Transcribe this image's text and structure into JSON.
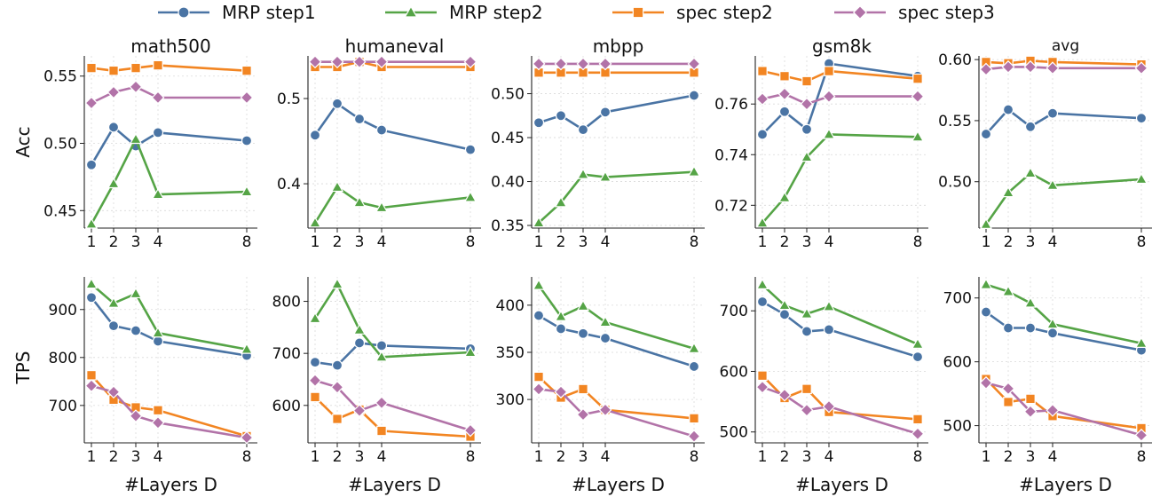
{
  "legend": [
    {
      "name": "MRP step1",
      "color": "#4a74a4",
      "marker": "circle"
    },
    {
      "name": "MRP step2",
      "color": "#55a446",
      "marker": "triangle"
    },
    {
      "name": "spec step2",
      "color": "#f28522",
      "marker": "square"
    },
    {
      "name": "spec step3",
      "color": "#b273a8",
      "marker": "diamond"
    }
  ],
  "row_labels": [
    "Acc",
    "TPS"
  ],
  "xlabel": "#Layers D",
  "chart_data": [
    {
      "type": "line",
      "title": "math500",
      "row": 0,
      "ylabel": "Acc",
      "xlabel": "",
      "x": [
        1,
        2,
        3,
        4,
        8
      ],
      "ylim": [
        0.437,
        0.565
      ],
      "yticks": [
        0.45,
        0.5,
        0.55
      ],
      "yticklabels": [
        "0.45",
        "0.50",
        "0.55"
      ],
      "series": [
        {
          "name": "MRP step1",
          "values": [
            0.484,
            0.512,
            0.498,
            0.508,
            0.502
          ]
        },
        {
          "name": "MRP step2",
          "values": [
            0.44,
            0.47,
            0.503,
            0.462,
            0.464
          ]
        },
        {
          "name": "spec step2",
          "values": [
            0.556,
            0.554,
            0.556,
            0.558,
            0.554
          ]
        },
        {
          "name": "spec step3",
          "values": [
            0.53,
            0.538,
            0.542,
            0.534,
            0.534
          ]
        }
      ]
    },
    {
      "type": "line",
      "title": "humaneval",
      "row": 0,
      "ylabel": "",
      "xlabel": "",
      "x": [
        1,
        2,
        3,
        4,
        8
      ],
      "ylim": [
        0.348,
        0.55
      ],
      "yticks": [
        0.4,
        0.5
      ],
      "yticklabels": [
        "0.4",
        "0.5"
      ],
      "series": [
        {
          "name": "MRP step1",
          "values": [
            0.457,
            0.494,
            0.476,
            0.463,
            0.44
          ]
        },
        {
          "name": "MRP step2",
          "values": [
            0.354,
            0.396,
            0.378,
            0.372,
            0.384
          ]
        },
        {
          "name": "spec step2",
          "values": [
            0.537,
            0.537,
            0.543,
            0.537,
            0.537
          ]
        },
        {
          "name": "spec step3",
          "values": [
            0.543,
            0.543,
            0.543,
            0.543,
            0.543
          ]
        }
      ]
    },
    {
      "type": "line",
      "title": "mbpp",
      "row": 0,
      "ylabel": "",
      "xlabel": "",
      "x": [
        1,
        2,
        3,
        4,
        8
      ],
      "ylim": [
        0.347,
        0.543
      ],
      "yticks": [
        0.35,
        0.4,
        0.45,
        0.5
      ],
      "yticklabels": [
        "0.35",
        "0.40",
        "0.45",
        "0.50"
      ],
      "series": [
        {
          "name": "MRP step1",
          "values": [
            0.467,
            0.475,
            0.459,
            0.479,
            0.498
          ]
        },
        {
          "name": "MRP step2",
          "values": [
            0.353,
            0.376,
            0.408,
            0.405,
            0.411
          ]
        },
        {
          "name": "spec step2",
          "values": [
            0.524,
            0.524,
            0.524,
            0.524,
            0.524
          ]
        },
        {
          "name": "spec step3",
          "values": [
            0.534,
            0.534,
            0.534,
            0.534,
            0.534
          ]
        }
      ]
    },
    {
      "type": "line",
      "title": "gsm8k",
      "row": 0,
      "ylabel": "",
      "xlabel": "",
      "x": [
        1,
        2,
        3,
        4,
        8
      ],
      "ylim": [
        0.711,
        0.779
      ],
      "yticks": [
        0.72,
        0.74,
        0.76
      ],
      "yticklabels": [
        "0.72",
        "0.74",
        "0.76"
      ],
      "series": [
        {
          "name": "MRP step1",
          "values": [
            0.748,
            0.757,
            0.75,
            0.776,
            0.771
          ]
        },
        {
          "name": "MRP step2",
          "values": [
            0.713,
            0.723,
            0.739,
            0.748,
            0.747
          ]
        },
        {
          "name": "spec step2",
          "values": [
            0.773,
            0.771,
            0.769,
            0.773,
            0.77
          ]
        },
        {
          "name": "spec step3",
          "values": [
            0.762,
            0.764,
            0.76,
            0.763,
            0.763
          ]
        }
      ]
    },
    {
      "type": "line",
      "title": "avg",
      "row": 0,
      "ylabel": "",
      "xlabel": "",
      "x": [
        1,
        2,
        3,
        4,
        8
      ],
      "ylim": [
        0.462,
        0.603
      ],
      "yticks": [
        0.5,
        0.55,
        0.6
      ],
      "yticklabels": [
        "0.50",
        "0.55",
        "0.60"
      ],
      "series": [
        {
          "name": "MRP step1",
          "values": [
            0.539,
            0.559,
            0.545,
            0.556,
            0.552
          ]
        },
        {
          "name": "MRP step2",
          "values": [
            0.465,
            0.491,
            0.507,
            0.497,
            0.502
          ]
        },
        {
          "name": "spec step2",
          "values": [
            0.598,
            0.597,
            0.599,
            0.598,
            0.596
          ]
        },
        {
          "name": "spec step3",
          "values": [
            0.592,
            0.594,
            0.594,
            0.593,
            0.593
          ]
        }
      ]
    },
    {
      "type": "line",
      "title": "",
      "row": 1,
      "ylabel": "TPS",
      "xlabel": "#Layers D",
      "x": [
        1,
        2,
        3,
        4,
        8
      ],
      "ylim": [
        622,
        968
      ],
      "yticks": [
        700,
        800,
        900
      ],
      "yticklabels": [
        "700",
        "800",
        "900"
      ],
      "series": [
        {
          "name": "MRP step1",
          "values": [
            925,
            866,
            856,
            834,
            804
          ]
        },
        {
          "name": "MRP step2",
          "values": [
            953,
            913,
            933,
            851,
            817
          ]
        },
        {
          "name": "spec step2",
          "values": [
            763,
            712,
            696,
            690,
            636
          ]
        },
        {
          "name": "spec step3",
          "values": [
            741,
            728,
            678,
            664,
            633
          ]
        }
      ]
    },
    {
      "type": "line",
      "title": "",
      "row": 1,
      "ylabel": "",
      "xlabel": "#Layers D",
      "x": [
        1,
        2,
        3,
        4,
        8
      ],
      "ylim": [
        528,
        847
      ],
      "yticks": [
        600,
        700,
        800
      ],
      "yticklabels": [
        "600",
        "700",
        "800"
      ],
      "series": [
        {
          "name": "MRP step1",
          "values": [
            683,
            677,
            720,
            715,
            709
          ]
        },
        {
          "name": "MRP step2",
          "values": [
            767,
            833,
            745,
            693,
            702
          ]
        },
        {
          "name": "spec step2",
          "values": [
            616,
            574,
            592,
            551,
            540
          ]
        },
        {
          "name": "spec step3",
          "values": [
            648,
            635,
            590,
            605,
            552
          ]
        }
      ]
    },
    {
      "type": "line",
      "title": "",
      "row": 1,
      "ylabel": "",
      "xlabel": "#Layers D",
      "x": [
        1,
        2,
        3,
        4,
        8
      ],
      "ylim": [
        254,
        430
      ],
      "yticks": [
        300,
        350,
        400
      ],
      "yticklabels": [
        "300",
        "350",
        "400"
      ],
      "series": [
        {
          "name": "MRP step1",
          "values": [
            389,
            375,
            370,
            365,
            335
          ]
        },
        {
          "name": "MRP step2",
          "values": [
            421,
            388,
            399,
            382,
            354
          ]
        },
        {
          "name": "spec step2",
          "values": [
            324,
            302,
            311,
            289,
            280
          ]
        },
        {
          "name": "spec step3",
          "values": [
            311,
            308,
            284,
            289,
            261
          ]
        }
      ]
    },
    {
      "type": "line",
      "title": "",
      "row": 1,
      "ylabel": "",
      "xlabel": "#Layers D",
      "x": [
        1,
        2,
        3,
        4,
        8
      ],
      "ylim": [
        482,
        756
      ],
      "yticks": [
        500,
        600,
        700
      ],
      "yticklabels": [
        "500",
        "600",
        "700"
      ],
      "series": [
        {
          "name": "MRP step1",
          "values": [
            715,
            694,
            666,
            669,
            624
          ]
        },
        {
          "name": "MRP step2",
          "values": [
            743,
            709,
            695,
            707,
            645
          ]
        },
        {
          "name": "spec step2",
          "values": [
            593,
            556,
            571,
            533,
            521
          ]
        },
        {
          "name": "spec step3",
          "values": [
            574,
            561,
            536,
            542,
            497
          ]
        }
      ]
    },
    {
      "type": "line",
      "title": "",
      "row": 1,
      "ylabel": "",
      "xlabel": "#Layers D",
      "x": [
        1,
        2,
        3,
        4,
        8
      ],
      "ylim": [
        473,
        733
      ],
      "yticks": [
        500,
        600,
        700
      ],
      "yticklabels": [
        "500",
        "600",
        "700"
      ],
      "series": [
        {
          "name": "MRP step1",
          "values": [
            678,
            653,
            653,
            645,
            618
          ]
        },
        {
          "name": "MRP step2",
          "values": [
            721,
            710,
            692,
            659,
            629
          ]
        },
        {
          "name": "spec step2",
          "values": [
            573,
            537,
            542,
            515,
            496
          ]
        },
        {
          "name": "spec step3",
          "values": [
            567,
            558,
            522,
            524,
            485
          ]
        }
      ]
    }
  ]
}
